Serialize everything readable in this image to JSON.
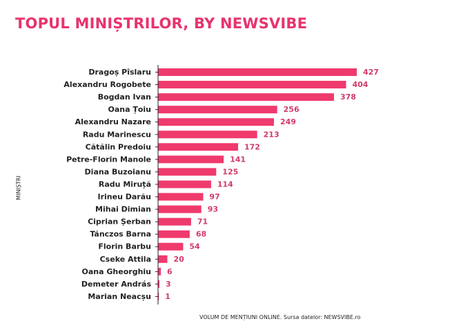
{
  "title": "TOPUL MINIȘTRILOR, BY NEWSVIBE",
  "colors": {
    "accent": "#e8336d",
    "bar": "#ef3a6d",
    "value_text": "#d23b6a",
    "axis": "#222222"
  },
  "chart_data": {
    "type": "bar",
    "orientation": "horizontal",
    "ylabel": "MINIȘTRI",
    "xlabel": "VOLUM DE MENȚIUNI ONLINE. Sursa datelor: NEWSVIBE.ro",
    "categories": [
      "Dragoș Pîslaru",
      "Alexandru Rogobete",
      "Bogdan Ivan",
      "Oana Țoiu",
      "Alexandru Nazare",
      "Radu Marinescu",
      "Cătălin Predoiu",
      "Petre-Florin Manole",
      "Diana Buzoianu",
      "Radu Miruță",
      "Irineu Darău",
      "Mihai Dimian",
      "Ciprian Șerban",
      "Tánczos Barna",
      "Florin Barbu",
      "Cseke Attila",
      "Oana Gheorghiu",
      "Demeter András",
      "Marian Neacșu"
    ],
    "values": [
      427,
      404,
      378,
      256,
      249,
      213,
      172,
      141,
      125,
      114,
      97,
      93,
      71,
      68,
      54,
      20,
      6,
      3,
      1
    ],
    "xlim": [
      0,
      427
    ],
    "grid": false,
    "data_labels": true
  }
}
